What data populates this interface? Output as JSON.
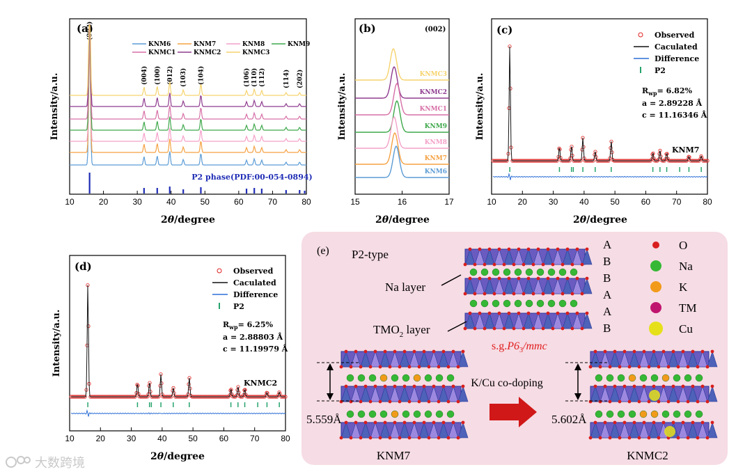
{
  "colors": {
    "KNM6": "#5b9bd5",
    "KNM7": "#f5a142",
    "KNM8": "#f4a0c8",
    "KNM9": "#3ea84b",
    "KNMC1": "#d76fa6",
    "KNMC2": "#8e3b8e",
    "KNMC3": "#f6d36d",
    "observed": "#e02020",
    "calc": "#111111",
    "diff": "#2d6fd6",
    "ticks": "#25a36b",
    "pdf": "#1f2db5",
    "panel_bg": "#f6dce4"
  },
  "panels": {
    "a": {
      "label": "(a)",
      "ylabel": "Intensity/a.u.",
      "xlabel_pre": "2",
      "xlabel_theta": "θ",
      "xlabel_post": "/degree",
      "legend": [
        "KNM6",
        "KNM7",
        "KNM8",
        "KNM9",
        "KNMC1",
        "KNMC2",
        "KNMC3"
      ],
      "peaks": [
        "(002)",
        "(004)",
        "(100)",
        "(012)",
        "(103)",
        "(104)",
        "(106)",
        "(110)",
        "(112)",
        "(114)",
        "(202)"
      ],
      "pdf": "P2 phase(PDF:00-054-0894)",
      "xticks": [
        "10",
        "20",
        "30",
        "40",
        "50",
        "60",
        "70",
        "80"
      ]
    },
    "b": {
      "label": "(b)",
      "peak": "(002)",
      "ylabel": "Intensity/a.u.",
      "xlabel_pre": "2",
      "xlabel_theta": "θ",
      "xlabel_post": "/degree",
      "samples": [
        "KNMC3",
        "KNMC2",
        "KNMC1",
        "KNM9",
        "KNM8",
        "KNM7",
        "KNM6"
      ],
      "xticks": [
        "15",
        "16",
        "17"
      ]
    },
    "c": {
      "label": "(c)",
      "ylabel": "Intensity/a.u.",
      "xlabel_pre": "2",
      "xlabel_theta": "θ",
      "xlabel_post": "/degree",
      "legend": [
        "Observed",
        "Caculated",
        "Difference",
        "P2"
      ],
      "rwp": "= 6.82%",
      "a": "a = 2.89228 Å",
      "c": "c = 11.16346 Å",
      "sample": "KNM7",
      "xticks": [
        "10",
        "20",
        "30",
        "40",
        "50",
        "60",
        "70",
        "80"
      ]
    },
    "d": {
      "label": "(d)",
      "ylabel": "Intensity/a.u.",
      "xlabel_pre": "2",
      "xlabel_theta": "θ",
      "xlabel_post": "/degree",
      "legend": [
        "Observed",
        "Caculated",
        "Difference",
        "P2"
      ],
      "rwp": "= 6.25%",
      "a": "a = 2.88803 Å",
      "c": "c = 11.19979 Å",
      "sample": "KNMC2",
      "xticks": [
        "10",
        "20",
        "30",
        "40",
        "50",
        "60",
        "70",
        "80"
      ]
    },
    "e": {
      "label": "(e)",
      "type": "P2-type",
      "na_layer": "Na layer",
      "tmo2_pre": "TMO",
      "tmo2_sub": "2",
      "tmo2_post": " layer",
      "stacking": [
        "A",
        "B",
        "B",
        "A",
        "A",
        "B"
      ],
      "sg_pre": "s.g.",
      "sg_italic": "P6",
      "sg_sub": "3",
      "sg_post": "/mmc",
      "doping": "K/Cu co-doping",
      "d1": "5.559Å",
      "d2": "5.602Å",
      "name1": "KNM7",
      "name2": "KNMC2",
      "legend": [
        {
          "el": "O",
          "color": "#d81e1e"
        },
        {
          "el": "Na",
          "color": "#36b836"
        },
        {
          "el": "K",
          "color": "#f29a1a"
        },
        {
          "el": "TM",
          "color": "#c0156f"
        },
        {
          "el": "Cu",
          "color": "#e6e01a"
        }
      ]
    }
  },
  "watermark": "大数跨境"
}
